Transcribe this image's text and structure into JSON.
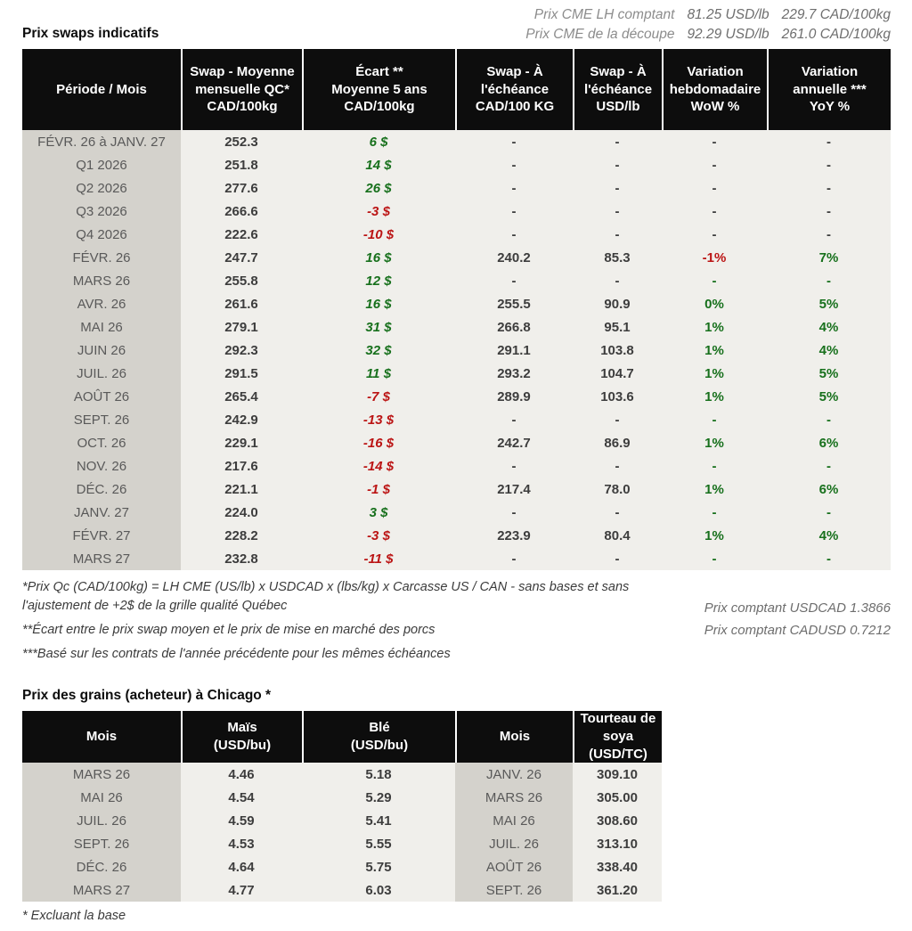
{
  "colors": {
    "green": "#17701c",
    "red": "#bb1414",
    "dark": "#3d3d3d"
  },
  "top": {
    "line1": {
      "label": "Prix CME LH comptant",
      "usd": "81.25 USD/lb",
      "cad": "229.7 CAD/100kg"
    },
    "line2": {
      "label": "Prix CME de la découpe",
      "usd": "92.29 USD/lb",
      "cad": "261.0 CAD/100kg"
    }
  },
  "swaps": {
    "title": "Prix swaps indicatifs",
    "headers": [
      "Période / Mois",
      "Swap - Moyenne\nmensuelle QC*\nCAD/100kg",
      "Écart **\nMoyenne 5 ans\nCAD/100kg",
      "Swap - À\nl'échéance\nCAD/100 KG",
      "Swap - À\nl'échéance\nUSD/lb",
      "Variation\nhebdomadaire\nWoW %",
      "Variation\nannuelle ***\nYoY %"
    ],
    "rows": [
      {
        "periode": "FÉVR. 26 à  JANV. 27",
        "moyenne": "252.3",
        "ecart": "6 $",
        "echeance_cad": "-",
        "echeance_usd": "-",
        "wow": "-",
        "yoy": "-",
        "colors": {
          "ecart": "green",
          "wow": "dark",
          "yoy": "dark"
        }
      },
      {
        "periode": "Q1 2026",
        "moyenne": "251.8",
        "ecart": "14 $",
        "echeance_cad": "-",
        "echeance_usd": "-",
        "wow": "-",
        "yoy": "-",
        "colors": {
          "ecart": "green",
          "wow": "dark",
          "yoy": "dark"
        }
      },
      {
        "periode": "Q2 2026",
        "moyenne": "277.6",
        "ecart": "26 $",
        "echeance_cad": "-",
        "echeance_usd": "-",
        "wow": "-",
        "yoy": "-",
        "colors": {
          "ecart": "green",
          "wow": "dark",
          "yoy": "dark"
        }
      },
      {
        "periode": "Q3 2026",
        "moyenne": "266.6",
        "ecart": "-3 $",
        "echeance_cad": "-",
        "echeance_usd": "-",
        "wow": "-",
        "yoy": "-",
        "colors": {
          "ecart": "red",
          "wow": "dark",
          "yoy": "dark"
        }
      },
      {
        "periode": "Q4 2026",
        "moyenne": "222.6",
        "ecart": "-10 $",
        "echeance_cad": "-",
        "echeance_usd": "-",
        "wow": "-",
        "yoy": "-",
        "colors": {
          "ecart": "red",
          "wow": "dark",
          "yoy": "dark"
        }
      },
      {
        "periode": "FÉVR. 26",
        "moyenne": "247.7",
        "ecart": "16 $",
        "echeance_cad": "240.2",
        "echeance_usd": "85.3",
        "wow": "-1%",
        "yoy": "7%",
        "colors": {
          "ecart": "green",
          "wow": "red",
          "yoy": "green"
        }
      },
      {
        "periode": "MARS 26",
        "moyenne": "255.8",
        "ecart": "12 $",
        "echeance_cad": "-",
        "echeance_usd": "-",
        "wow": "-",
        "yoy": "-",
        "colors": {
          "ecart": "green",
          "wow": "green",
          "yoy": "green"
        }
      },
      {
        "periode": "AVR. 26",
        "moyenne": "261.6",
        "ecart": "16 $",
        "echeance_cad": "255.5",
        "echeance_usd": "90.9",
        "wow": "0%",
        "yoy": "5%",
        "colors": {
          "ecart": "green",
          "wow": "green",
          "yoy": "green"
        }
      },
      {
        "periode": "MAI 26",
        "moyenne": "279.1",
        "ecart": "31 $",
        "echeance_cad": "266.8",
        "echeance_usd": "95.1",
        "wow": "1%",
        "yoy": "4%",
        "colors": {
          "ecart": "green",
          "wow": "green",
          "yoy": "green"
        }
      },
      {
        "periode": "JUIN 26",
        "moyenne": "292.3",
        "ecart": "32 $",
        "echeance_cad": "291.1",
        "echeance_usd": "103.8",
        "wow": "1%",
        "yoy": "4%",
        "colors": {
          "ecart": "green",
          "wow": "green",
          "yoy": "green"
        }
      },
      {
        "periode": "JUIL. 26",
        "moyenne": "291.5",
        "ecart": "11 $",
        "echeance_cad": "293.2",
        "echeance_usd": "104.7",
        "wow": "1%",
        "yoy": "5%",
        "colors": {
          "ecart": "green",
          "wow": "green",
          "yoy": "green"
        }
      },
      {
        "periode": "AOÛT 26",
        "moyenne": "265.4",
        "ecart": "-7 $",
        "echeance_cad": "289.9",
        "echeance_usd": "103.6",
        "wow": "1%",
        "yoy": "5%",
        "colors": {
          "ecart": "red",
          "wow": "green",
          "yoy": "green"
        }
      },
      {
        "periode": "SEPT. 26",
        "moyenne": "242.9",
        "ecart": "-13 $",
        "echeance_cad": "-",
        "echeance_usd": "-",
        "wow": "-",
        "yoy": "-",
        "colors": {
          "ecart": "red",
          "wow": "green",
          "yoy": "green"
        }
      },
      {
        "periode": "OCT. 26",
        "moyenne": "229.1",
        "ecart": "-16 $",
        "echeance_cad": "242.7",
        "echeance_usd": "86.9",
        "wow": "1%",
        "yoy": "6%",
        "colors": {
          "ecart": "red",
          "wow": "green",
          "yoy": "green"
        }
      },
      {
        "periode": "NOV. 26",
        "moyenne": "217.6",
        "ecart": "-14 $",
        "echeance_cad": "-",
        "echeance_usd": "-",
        "wow": "-",
        "yoy": "-",
        "colors": {
          "ecart": "red",
          "wow": "green",
          "yoy": "green"
        }
      },
      {
        "periode": "DÉC. 26",
        "moyenne": "221.1",
        "ecart": "-1 $",
        "echeance_cad": "217.4",
        "echeance_usd": "78.0",
        "wow": "1%",
        "yoy": "6%",
        "colors": {
          "ecart": "red",
          "wow": "green",
          "yoy": "green"
        }
      },
      {
        "periode": "JANV. 27",
        "moyenne": "224.0",
        "ecart": "3 $",
        "echeance_cad": "-",
        "echeance_usd": "-",
        "wow": "-",
        "yoy": "-",
        "colors": {
          "ecart": "green",
          "wow": "green",
          "yoy": "green"
        }
      },
      {
        "periode": "FÉVR. 27",
        "moyenne": "228.2",
        "ecart": "-3 $",
        "echeance_cad": "223.9",
        "echeance_usd": "80.4",
        "wow": "1%",
        "yoy": "4%",
        "colors": {
          "ecart": "red",
          "wow": "green",
          "yoy": "green"
        }
      },
      {
        "periode": "MARS 27",
        "moyenne": "232.8",
        "ecart": "-11 $",
        "echeance_cad": "-",
        "echeance_usd": "-",
        "wow": "-",
        "yoy": "-",
        "colors": {
          "ecart": "red",
          "wow": "green",
          "yoy": "green"
        }
      }
    ],
    "footnotes": [
      "*Prix Qc (CAD/100kg) = LH CME (US/lb) x USDCAD x (lbs/kg) x Carcasse US / CAN - sans bases et sans l'ajustement de +2$ de la grille qualité Québec",
      "**Écart entre le prix swap moyen et le prix de mise en marché des porcs",
      "***Basé sur les contrats de l'année précédente pour les mêmes échéances"
    ],
    "spot_notes": [
      "Prix comptant USDCAD 1.3866",
      "Prix comptant CADUSD 0.7212"
    ]
  },
  "grains": {
    "title": "Prix des grains (acheteur) à Chicago *",
    "headers": [
      "Mois",
      "Maïs\n(USD/bu)",
      "Blé\n(USD/bu)",
      "Mois",
      "Tourteau de\nsoya\n(USD/TC)"
    ],
    "rows": [
      [
        "MARS 26",
        "4.46",
        "5.18",
        "JANV. 26",
        "309.10"
      ],
      [
        "MAI 26",
        "4.54",
        "5.29",
        "MARS 26",
        "305.00"
      ],
      [
        "JUIL. 26",
        "4.59",
        "5.41",
        "MAI 26",
        "308.60"
      ],
      [
        "SEPT. 26",
        "4.53",
        "5.55",
        "JUIL. 26",
        "313.10"
      ],
      [
        "DÉC. 26",
        "4.64",
        "5.75",
        "AOÛT 26",
        "338.40"
      ],
      [
        "MARS 27",
        "4.77",
        "6.03",
        "SEPT. 26",
        "361.20"
      ]
    ],
    "footnote": "* Excluant la base"
  }
}
